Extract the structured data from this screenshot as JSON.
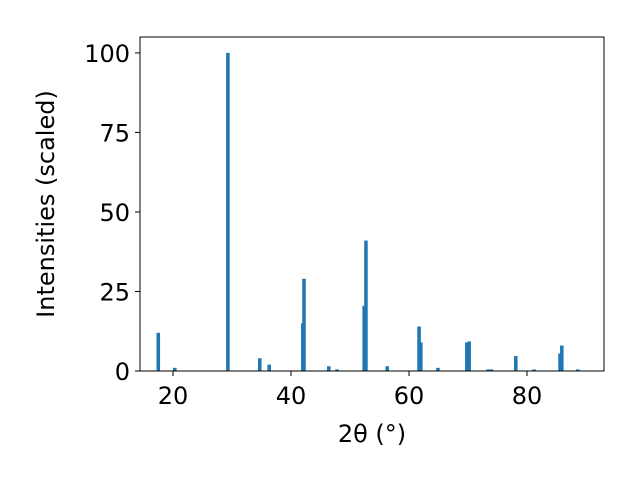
{
  "chart_data": {
    "type": "bar",
    "x_label": "2θ (°)",
    "y_label": "Intensities (scaled)",
    "x": [
      17.5,
      20.3,
      29.3,
      34.7,
      36.3,
      42.0,
      42.2,
      46.4,
      47.8,
      52.4,
      52.7,
      56.3,
      61.7,
      62.0,
      64.9,
      69.8,
      70.2,
      73.4,
      74.0,
      78.1,
      81.2,
      85.6,
      85.9,
      88.6
    ],
    "values": [
      12,
      1,
      100,
      4,
      2,
      15,
      29,
      1.5,
      0.5,
      20.5,
      41,
      1.5,
      14,
      9,
      1,
      9,
      9.3,
      0.5,
      0.5,
      4.7,
      0.5,
      5.5,
      8,
      0.5
    ],
    "color": "#1f77b4",
    "xlim": [
      14.4,
      93.05
    ],
    "ylim": [
      0,
      105
    ],
    "xticks": [
      20,
      40,
      60,
      80
    ],
    "yticks": [
      0,
      25,
      50,
      75,
      100
    ]
  }
}
